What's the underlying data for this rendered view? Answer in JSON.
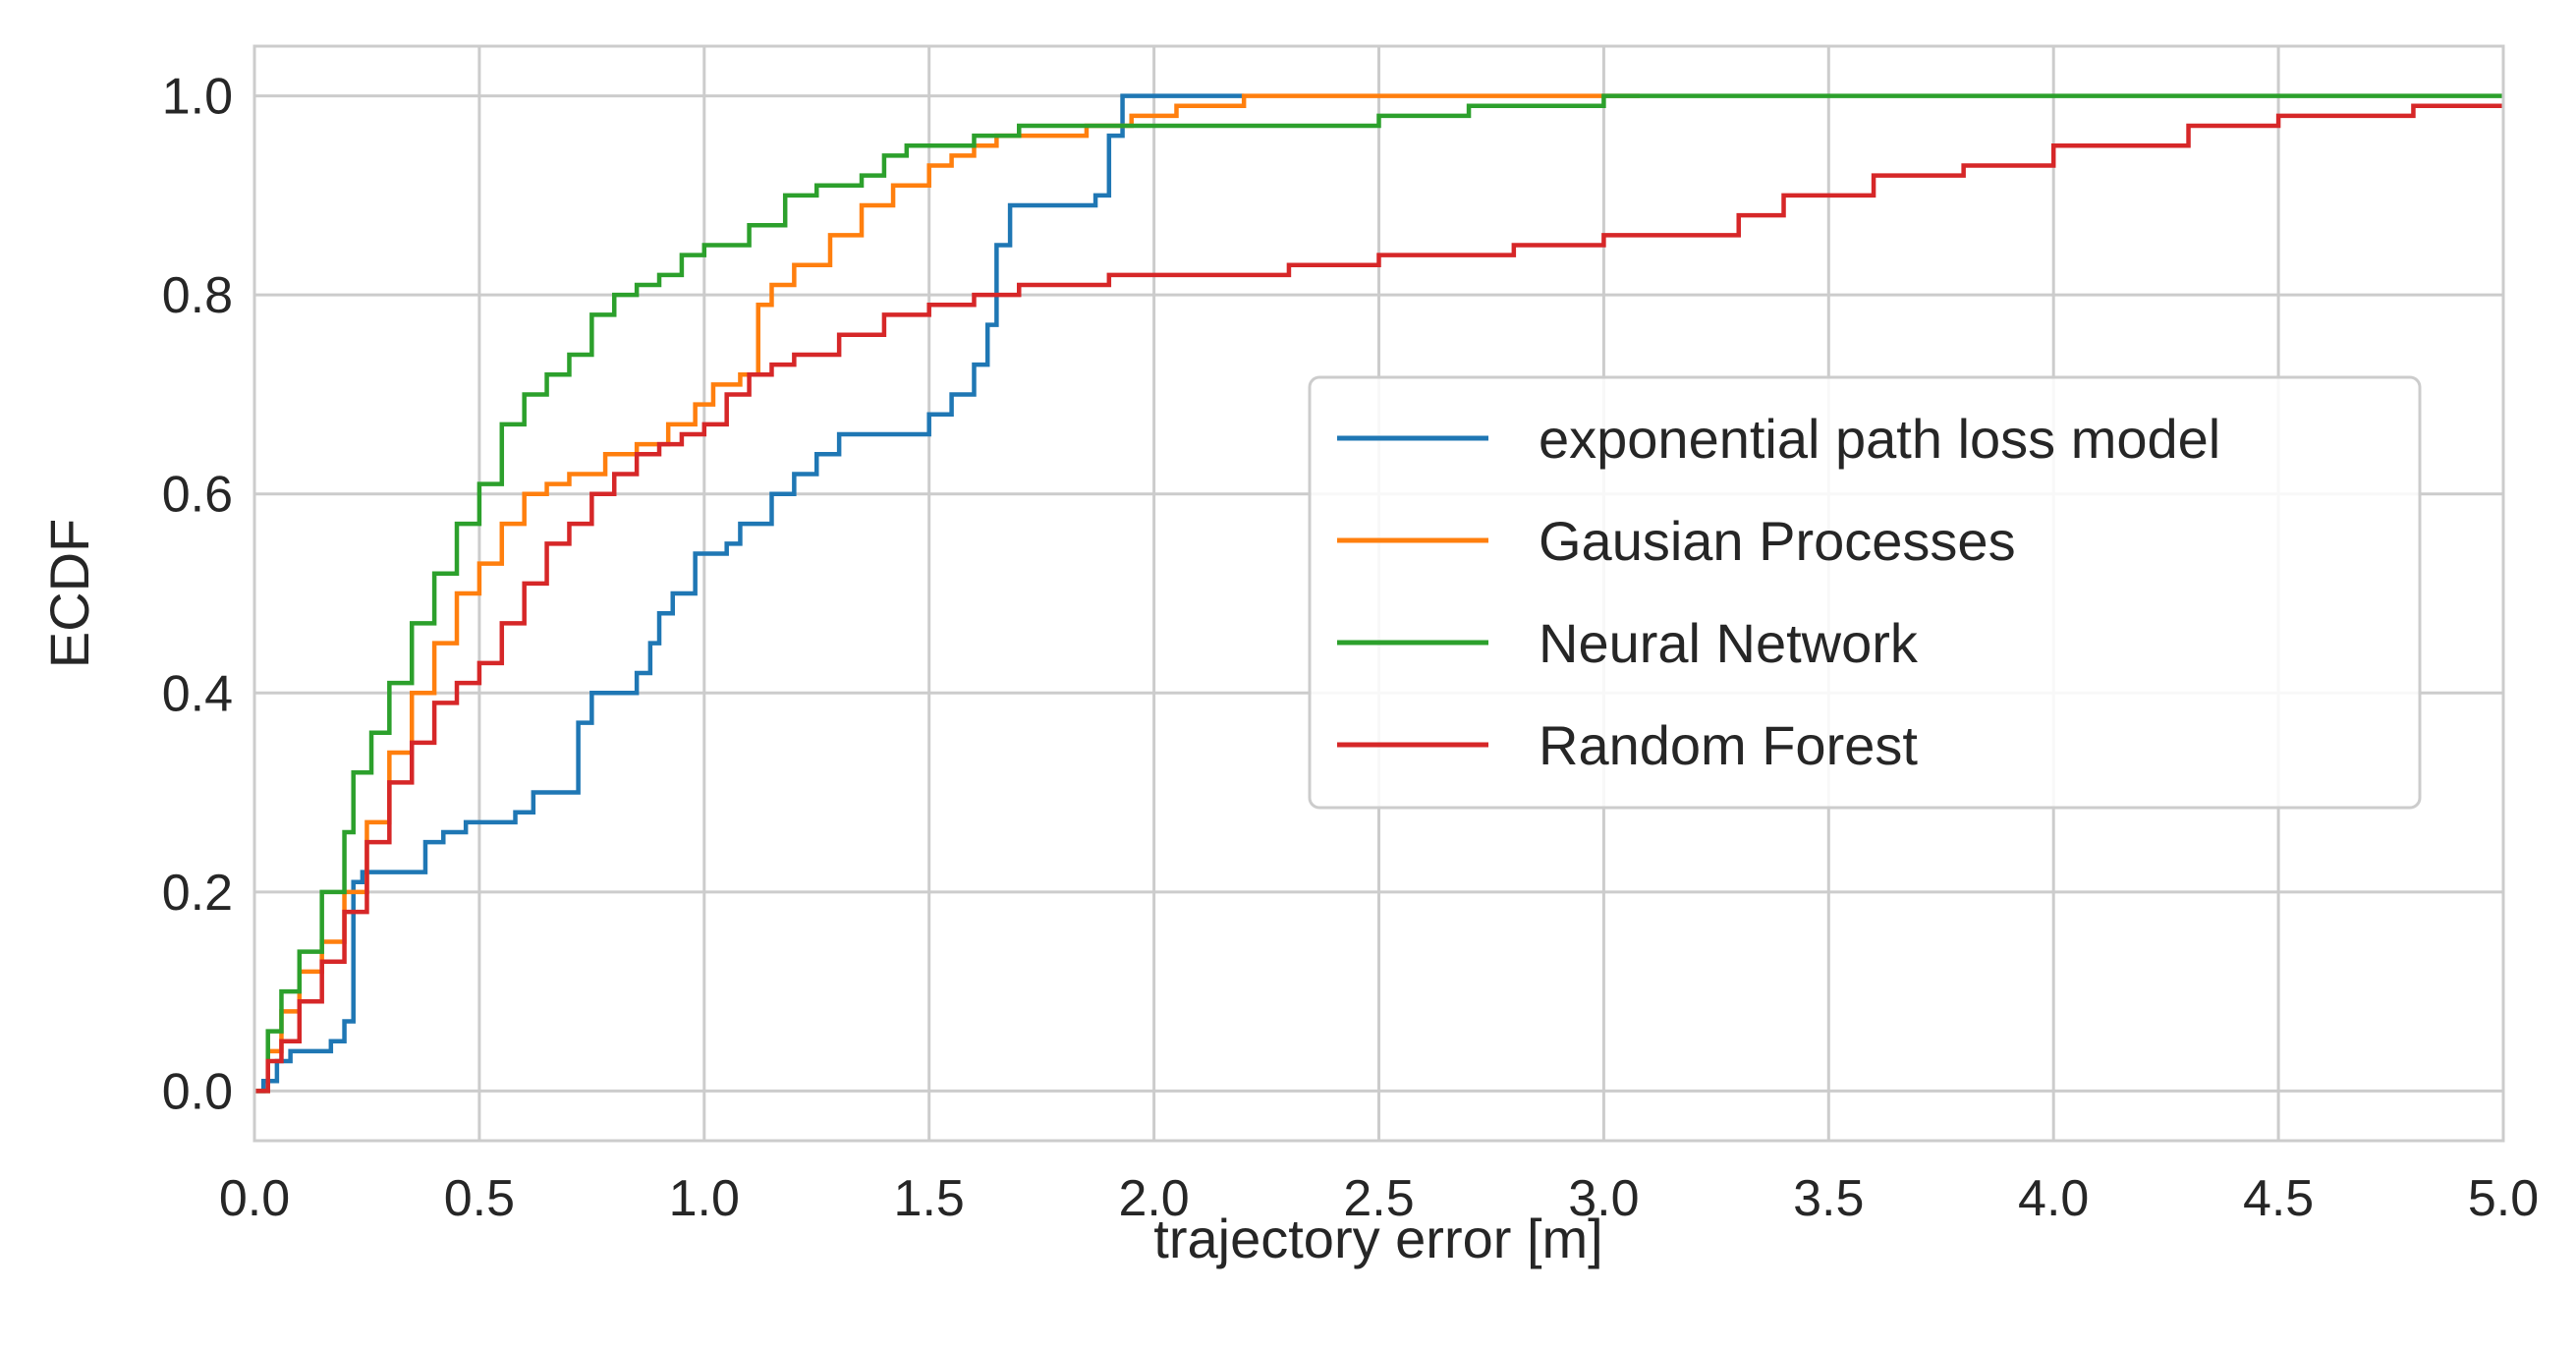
{
  "chart_data": {
    "type": "line",
    "step": true,
    "title": "",
    "xlabel": "trajectory error [m]",
    "ylabel": "ECDF",
    "xlim": [
      0.0,
      5.0
    ],
    "ylim": [
      -0.05,
      1.05
    ],
    "xticks": [
      0.0,
      0.5,
      1.0,
      1.5,
      2.0,
      2.5,
      3.0,
      3.5,
      4.0,
      4.5,
      5.0
    ],
    "xtick_labels": [
      "0.0",
      "0.5",
      "1.0",
      "1.5",
      "2.0",
      "2.5",
      "3.0",
      "3.5",
      "4.0",
      "4.5",
      "5.0"
    ],
    "yticks": [
      0.0,
      0.2,
      0.4,
      0.6,
      0.8,
      1.0
    ],
    "ytick_labels": [
      "0.0",
      "0.2",
      "0.4",
      "0.6",
      "0.8",
      "1.0"
    ],
    "grid": true,
    "legend_position": "center-right",
    "series": [
      {
        "name": "exponential path loss model",
        "color": "#1f77b4",
        "x": [
          0.0,
          0.02,
          0.05,
          0.08,
          0.12,
          0.17,
          0.2,
          0.22,
          0.24,
          0.28,
          0.38,
          0.42,
          0.47,
          0.52,
          0.58,
          0.62,
          0.65,
          0.72,
          0.75,
          0.8,
          0.85,
          0.88,
          0.9,
          0.93,
          0.98,
          1.05,
          1.08,
          1.1,
          1.15,
          1.2,
          1.25,
          1.3,
          1.35,
          1.42,
          1.5,
          1.55,
          1.6,
          1.63,
          1.65,
          1.68,
          1.8,
          1.87,
          1.9,
          1.93,
          2.0,
          2.2
        ],
        "y": [
          0.0,
          0.01,
          0.03,
          0.04,
          0.04,
          0.05,
          0.07,
          0.21,
          0.22,
          0.22,
          0.25,
          0.26,
          0.27,
          0.27,
          0.28,
          0.3,
          0.3,
          0.37,
          0.4,
          0.4,
          0.42,
          0.45,
          0.48,
          0.5,
          0.54,
          0.55,
          0.57,
          0.57,
          0.6,
          0.62,
          0.64,
          0.66,
          0.66,
          0.66,
          0.68,
          0.7,
          0.73,
          0.77,
          0.85,
          0.89,
          0.89,
          0.9,
          0.96,
          1.0,
          1.0,
          1.0
        ]
      },
      {
        "name": "Gausian Processes",
        "color": "#ff7f0e",
        "x": [
          0.0,
          0.03,
          0.06,
          0.1,
          0.15,
          0.2,
          0.25,
          0.3,
          0.35,
          0.4,
          0.45,
          0.5,
          0.55,
          0.6,
          0.65,
          0.7,
          0.78,
          0.85,
          0.92,
          0.98,
          1.02,
          1.08,
          1.12,
          1.15,
          1.2,
          1.28,
          1.35,
          1.42,
          1.5,
          1.55,
          1.6,
          1.65,
          1.75,
          1.85,
          1.95,
          2.05,
          2.2,
          2.5,
          3.0,
          3.08
        ],
        "y": [
          0.0,
          0.04,
          0.08,
          0.12,
          0.15,
          0.2,
          0.27,
          0.34,
          0.4,
          0.45,
          0.5,
          0.53,
          0.57,
          0.6,
          0.61,
          0.62,
          0.64,
          0.65,
          0.67,
          0.69,
          0.71,
          0.72,
          0.79,
          0.81,
          0.83,
          0.86,
          0.89,
          0.91,
          0.93,
          0.94,
          0.95,
          0.96,
          0.96,
          0.97,
          0.98,
          0.99,
          1.0,
          1.0,
          1.0,
          1.0
        ]
      },
      {
        "name": "Neural Network",
        "color": "#2ca02c",
        "x": [
          0.0,
          0.03,
          0.06,
          0.1,
          0.15,
          0.2,
          0.22,
          0.26,
          0.3,
          0.35,
          0.4,
          0.45,
          0.5,
          0.55,
          0.6,
          0.65,
          0.7,
          0.75,
          0.8,
          0.85,
          0.9,
          0.95,
          1.0,
          1.05,
          1.1,
          1.18,
          1.25,
          1.35,
          1.4,
          1.45,
          1.5,
          1.6,
          1.7,
          1.8,
          2.0,
          2.5,
          2.7,
          3.0,
          4.0,
          5.0
        ],
        "y": [
          0.0,
          0.06,
          0.1,
          0.14,
          0.2,
          0.26,
          0.32,
          0.36,
          0.41,
          0.47,
          0.52,
          0.57,
          0.61,
          0.67,
          0.7,
          0.72,
          0.74,
          0.78,
          0.8,
          0.81,
          0.82,
          0.84,
          0.85,
          0.85,
          0.87,
          0.9,
          0.91,
          0.92,
          0.94,
          0.95,
          0.95,
          0.96,
          0.97,
          0.97,
          0.97,
          0.98,
          0.99,
          1.0,
          1.0,
          1.0
        ]
      },
      {
        "name": "Random Forest",
        "color": "#d62728",
        "x": [
          0.0,
          0.03,
          0.06,
          0.1,
          0.15,
          0.2,
          0.25,
          0.3,
          0.35,
          0.4,
          0.45,
          0.5,
          0.55,
          0.6,
          0.65,
          0.7,
          0.75,
          0.8,
          0.85,
          0.9,
          0.95,
          1.0,
          1.05,
          1.1,
          1.15,
          1.2,
          1.3,
          1.4,
          1.5,
          1.6,
          1.7,
          1.9,
          2.1,
          2.3,
          2.5,
          2.8,
          3.0,
          3.3,
          3.4,
          3.6,
          3.8,
          4.0,
          4.3,
          4.5,
          4.8,
          5.0
        ],
        "y": [
          0.0,
          0.03,
          0.05,
          0.09,
          0.13,
          0.18,
          0.25,
          0.31,
          0.35,
          0.39,
          0.41,
          0.43,
          0.47,
          0.51,
          0.55,
          0.57,
          0.6,
          0.62,
          0.64,
          0.65,
          0.66,
          0.67,
          0.7,
          0.72,
          0.73,
          0.74,
          0.76,
          0.78,
          0.79,
          0.8,
          0.81,
          0.82,
          0.82,
          0.83,
          0.84,
          0.85,
          0.86,
          0.88,
          0.9,
          0.92,
          0.93,
          0.95,
          0.97,
          0.98,
          0.99,
          0.99
        ]
      }
    ]
  }
}
